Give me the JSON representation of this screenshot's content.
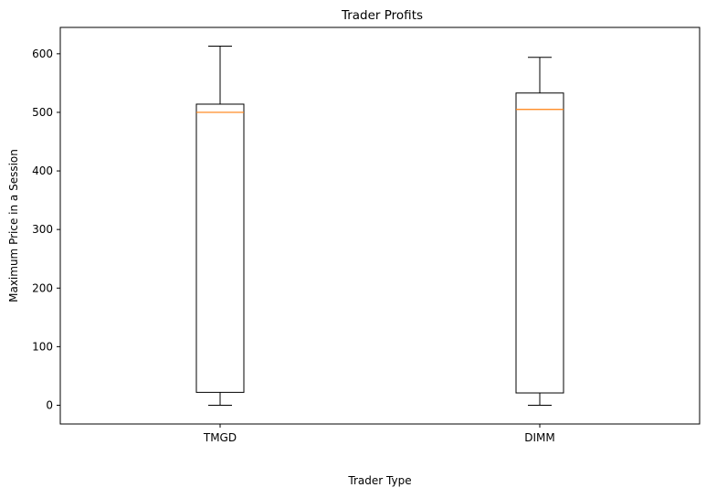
{
  "chart_data": {
    "type": "box",
    "title": "Trader Profits",
    "xlabel": "Trader Type",
    "ylabel": "Maximum Price in a Session",
    "categories": [
      "TMGD",
      "DIMM"
    ],
    "ylim": [
      -32,
      645
    ],
    "yticks": [
      0,
      100,
      200,
      300,
      400,
      500,
      600
    ],
    "grid": false,
    "boxes": [
      {
        "category": "TMGD",
        "min": 0,
        "q1": 22,
        "median": 500,
        "q3": 514,
        "max": 613
      },
      {
        "category": "DIMM",
        "min": 0,
        "q1": 21,
        "median": 505,
        "q3": 533,
        "max": 594
      }
    ],
    "colors": {
      "box": "#000000",
      "median": "#ff7f0e",
      "axes": "#000000"
    }
  }
}
